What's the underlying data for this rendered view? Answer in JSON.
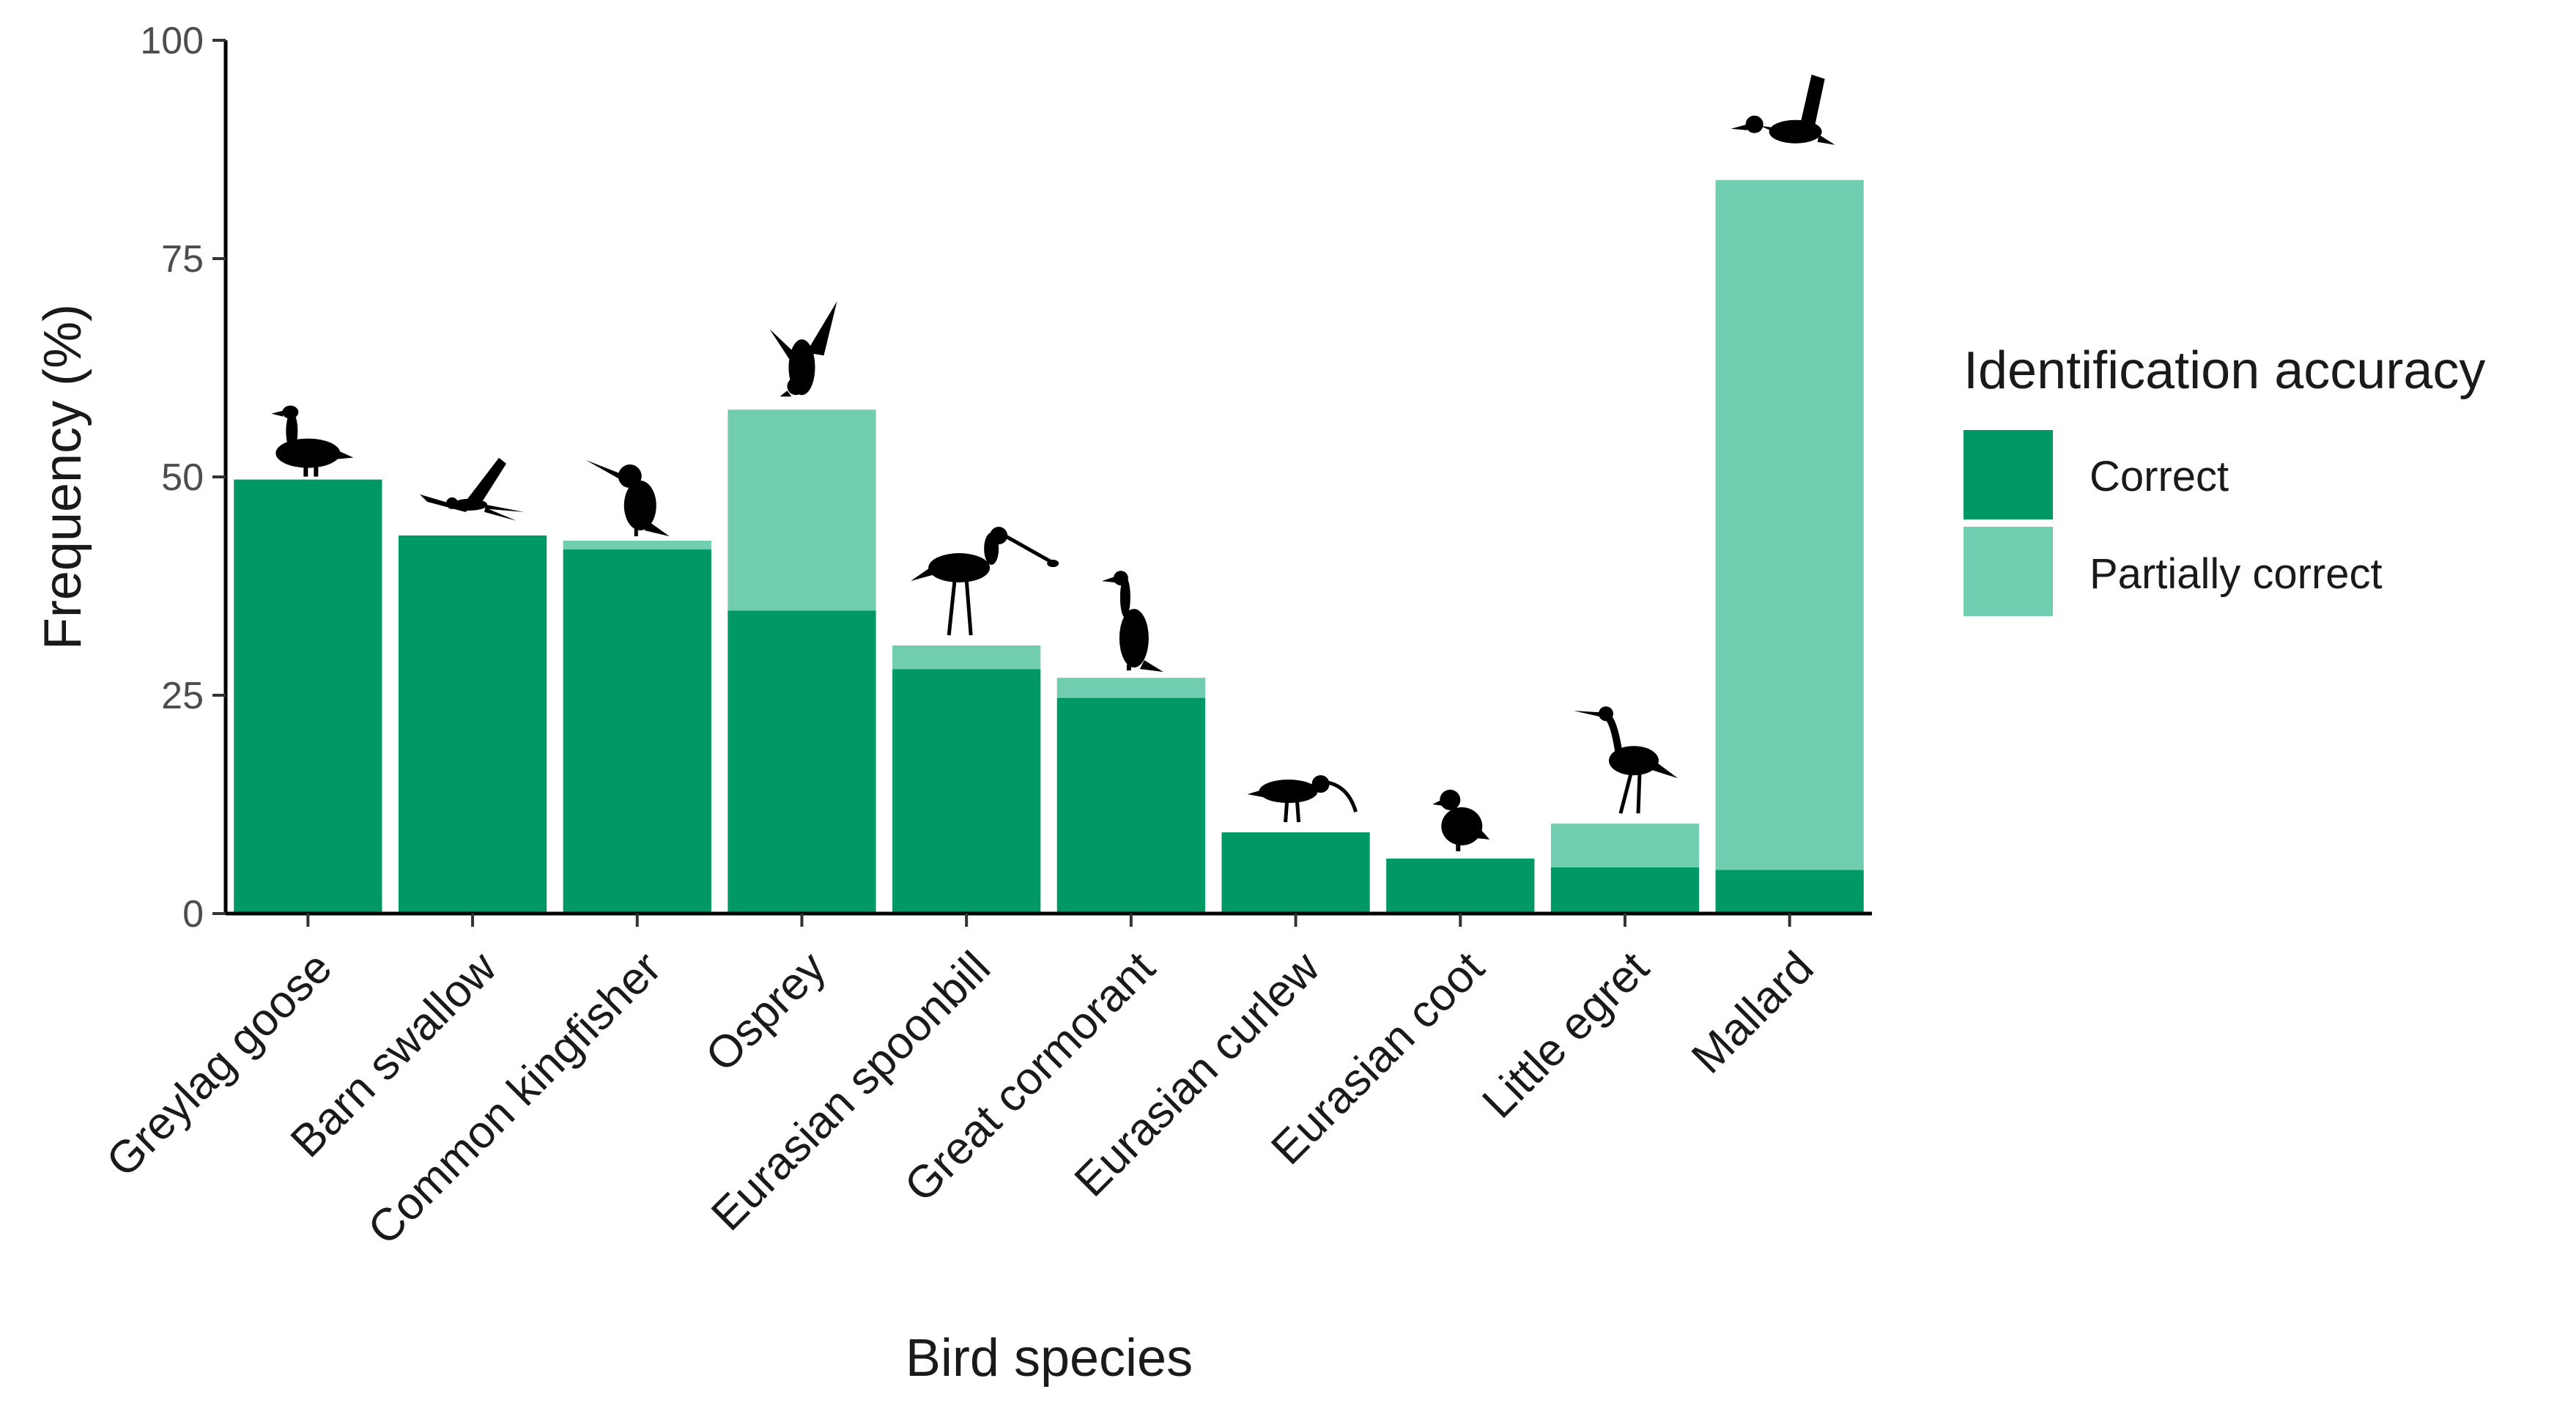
{
  "chart_data": {
    "type": "bar",
    "stacked": true,
    "title": "",
    "xlabel": "Bird species",
    "ylabel": "Frequency (%)",
    "ylim": [
      0,
      100
    ],
    "yticks": [
      0,
      25,
      50,
      75,
      100
    ],
    "categories": [
      "Greylag goose",
      "Barn swallow",
      "Common kingfisher",
      "Osprey",
      "Eurasian spoonbill",
      "Great cormorant",
      "Eurasian curlew",
      "Eurasian coot",
      "Little egret",
      "Mallard"
    ],
    "series": [
      {
        "name": "Correct",
        "color": "#009966",
        "values": [
          49.7,
          43.3,
          41.7,
          34.7,
          28.0,
          24.7,
          9.3,
          6.3,
          5.3,
          5.0
        ]
      },
      {
        "name": "Partially correct",
        "color": "#70CDB0",
        "values": [
          0.0,
          0.0,
          1.0,
          23.0,
          2.7,
          2.3,
          0.0,
          0.0,
          5.0,
          79.0
        ]
      }
    ],
    "icons": [
      "goose-icon",
      "swallow-icon",
      "kingfisher-icon",
      "osprey-icon",
      "spoonbill-icon",
      "cormorant-icon",
      "curlew-icon",
      "coot-icon",
      "egret-icon",
      "duck-icon"
    ],
    "legend": {
      "title": "Identification accuracy",
      "position": "right"
    }
  }
}
